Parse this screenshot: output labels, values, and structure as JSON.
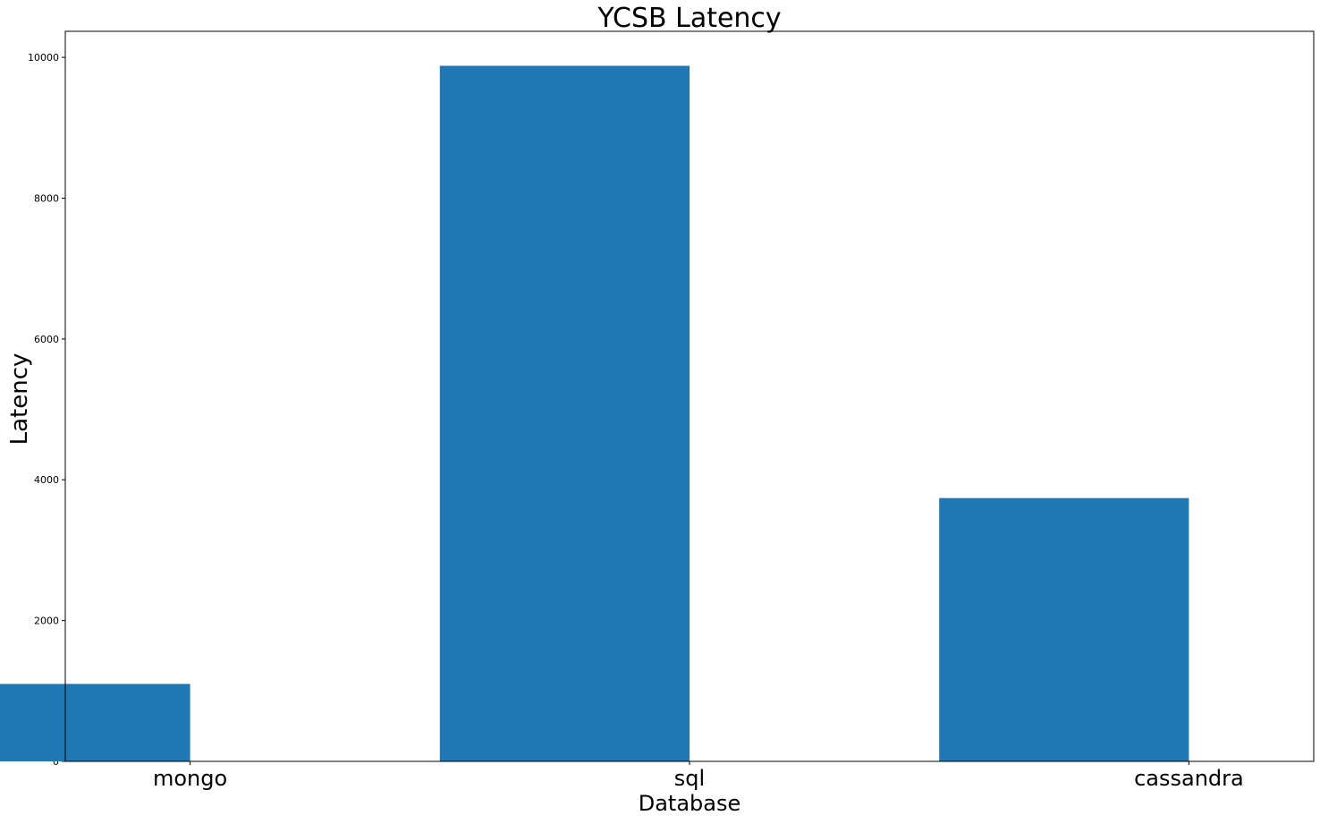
{
  "chart_data": {
    "type": "bar",
    "title": "YCSB Latency",
    "xlabel": "Database",
    "ylabel": "Latency",
    "categories": [
      "mongo",
      "sql",
      "cassandra"
    ],
    "values": [
      1100,
      9880,
      3740
    ],
    "ylim": [
      0,
      10370
    ],
    "yticks": [
      0,
      2000,
      4000,
      6000,
      8000,
      10000
    ],
    "grid": false,
    "bar_color": "#1f77b4"
  }
}
